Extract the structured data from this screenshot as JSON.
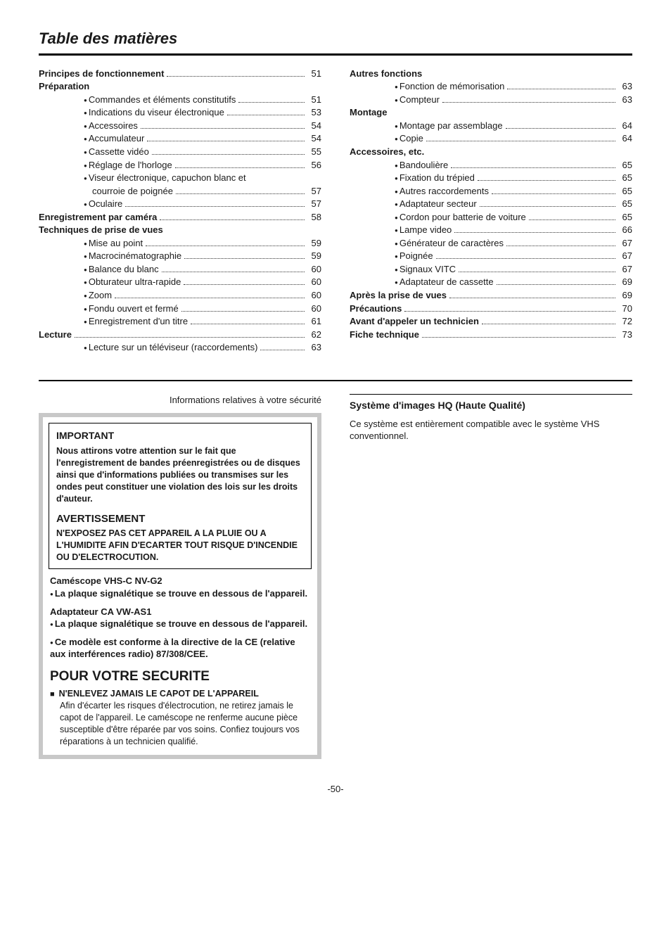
{
  "title": "Table des matières",
  "toc_left": [
    {
      "label": "Principes de fonctionnement",
      "page": "51",
      "bold": true,
      "indent": 0,
      "bullet": false
    },
    {
      "label": "Préparation",
      "page": "",
      "bold": true,
      "indent": 0,
      "bullet": false,
      "nodots": true
    },
    {
      "label": "Commandes et éléments constitutifs",
      "page": "51",
      "bold": false,
      "indent": 1,
      "bullet": true
    },
    {
      "label": "Indications du viseur électronique",
      "page": "53",
      "bold": false,
      "indent": 1,
      "bullet": true
    },
    {
      "label": "Accessoires",
      "page": "54",
      "bold": false,
      "indent": 1,
      "bullet": true
    },
    {
      "label": "Accumulateur",
      "page": "54",
      "bold": false,
      "indent": 1,
      "bullet": true
    },
    {
      "label": "Cassette vidéo",
      "page": "55",
      "bold": false,
      "indent": 1,
      "bullet": true
    },
    {
      "label": "Réglage de l'horloge",
      "page": "56",
      "bold": false,
      "indent": 1,
      "bullet": true
    },
    {
      "label": "Viseur électronique, capuchon blanc et",
      "page": "",
      "bold": false,
      "indent": 1,
      "bullet": true,
      "nodots": true
    },
    {
      "label": "courroie de poignée",
      "page": "57",
      "bold": false,
      "indent": 1,
      "bullet": false,
      "extra_indent": true
    },
    {
      "label": "Oculaire",
      "page": "57",
      "bold": false,
      "indent": 1,
      "bullet": true
    },
    {
      "label": "Enregistrement par caméra",
      "page": "58",
      "bold": true,
      "indent": 0,
      "bullet": false
    },
    {
      "label": "Techniques de prise de vues",
      "page": "",
      "bold": true,
      "indent": 0,
      "bullet": false,
      "nodots": true
    },
    {
      "label": "Mise au point",
      "page": "59",
      "bold": false,
      "indent": 1,
      "bullet": true
    },
    {
      "label": "Macrocinématographie",
      "page": "59",
      "bold": false,
      "indent": 1,
      "bullet": true
    },
    {
      "label": "Balance du blanc",
      "page": "60",
      "bold": false,
      "indent": 1,
      "bullet": true
    },
    {
      "label": "Obturateur ultra-rapide",
      "page": "60",
      "bold": false,
      "indent": 1,
      "bullet": true
    },
    {
      "label": "Zoom",
      "page": "60",
      "bold": false,
      "indent": 1,
      "bullet": true
    },
    {
      "label": "Fondu ouvert et fermé",
      "page": "60",
      "bold": false,
      "indent": 1,
      "bullet": true
    },
    {
      "label": "Enregistrement d'un titre",
      "page": "61",
      "bold": false,
      "indent": 1,
      "bullet": true
    },
    {
      "label": "Lecture",
      "page": "62",
      "bold": true,
      "indent": 0,
      "bullet": false
    },
    {
      "label": "Lecture sur un téléviseur (raccordements)",
      "page": "63",
      "bold": false,
      "indent": 1,
      "bullet": true
    }
  ],
  "toc_right": [
    {
      "label": "Autres fonctions",
      "page": "",
      "bold": true,
      "indent": 0,
      "bullet": false,
      "nodots": true
    },
    {
      "label": "Fonction de mémorisation",
      "page": "63",
      "bold": false,
      "indent": 1,
      "bullet": true
    },
    {
      "label": "Compteur",
      "page": "63",
      "bold": false,
      "indent": 1,
      "bullet": true
    },
    {
      "label": "Montage",
      "page": "",
      "bold": true,
      "indent": 0,
      "bullet": false,
      "nodots": true
    },
    {
      "label": "Montage par assemblage",
      "page": "64",
      "bold": false,
      "indent": 1,
      "bullet": true
    },
    {
      "label": "Copie",
      "page": "64",
      "bold": false,
      "indent": 1,
      "bullet": true
    },
    {
      "label": "Accessoires, etc.",
      "page": "",
      "bold": true,
      "indent": 0,
      "bullet": false,
      "nodots": true
    },
    {
      "label": "Bandoulière",
      "page": "65",
      "bold": false,
      "indent": 1,
      "bullet": true
    },
    {
      "label": "Fixation du trépied",
      "page": "65",
      "bold": false,
      "indent": 1,
      "bullet": true
    },
    {
      "label": "Autres raccordements",
      "page": "65",
      "bold": false,
      "indent": 1,
      "bullet": true
    },
    {
      "label": "Adaptateur secteur",
      "page": "65",
      "bold": false,
      "indent": 1,
      "bullet": true
    },
    {
      "label": "Cordon pour batterie de voiture",
      "page": "65",
      "bold": false,
      "indent": 1,
      "bullet": true
    },
    {
      "label": "Lampe video",
      "page": "66",
      "bold": false,
      "indent": 1,
      "bullet": true
    },
    {
      "label": "Générateur de caractères",
      "page": "67",
      "bold": false,
      "indent": 1,
      "bullet": true
    },
    {
      "label": "Poignée",
      "page": "67",
      "bold": false,
      "indent": 1,
      "bullet": true
    },
    {
      "label": "Signaux VITC",
      "page": "67",
      "bold": false,
      "indent": 1,
      "bullet": true
    },
    {
      "label": "Adaptateur de cassette",
      "page": "69",
      "bold": false,
      "indent": 1,
      "bullet": true
    },
    {
      "label": "Après la prise de vues",
      "page": "69",
      "bold": true,
      "indent": 0,
      "bullet": false
    },
    {
      "label": "Précautions",
      "page": "70",
      "bold": true,
      "indent": 0,
      "bullet": false
    },
    {
      "label": "Avant d'appeler un technicien",
      "page": "72",
      "bold": true,
      "indent": 0,
      "bullet": false
    },
    {
      "label": "Fiche technique",
      "page": "73",
      "bold": true,
      "indent": 0,
      "bullet": false
    }
  ],
  "safety_header": "Informations relatives à votre sécurité",
  "important": {
    "heading": "IMPORTANT",
    "body": "Nous attirons votre attention sur le fait que l'enregistrement de bandes préenregistrées ou de disques ainsi que d'informations publiées ou transmises sur les ondes peut constituer une violation des lois sur les droits d'auteur."
  },
  "warning": {
    "heading": "AVERTISSEMENT",
    "body": "N'EXPOSEZ PAS CET APPAREIL A LA PLUIE OU A L'HUMIDITE AFIN D'ECARTER TOUT RISQUE D'INCENDIE OU D'ELECTROCUTION."
  },
  "camescope": {
    "title": "Caméscope VHS-C NV-G2",
    "line": "La plaque signalétique se trouve en dessous de l'appareil."
  },
  "adapter": {
    "title": "Adaptateur CA VW-AS1",
    "line": "La plaque signalétique se trouve en dessous de l'appareil."
  },
  "ce_line": "Ce modèle est conforme à la directive de la CE (relative aux interférences radio) 87/308/CEE.",
  "security": {
    "heading": "POUR VOTRE SECURITE",
    "sub": "N'ENLEVEZ JAMAIS LE CAPOT DE L'APPAREIL",
    "body": "Afin d'écarter les risques d'électrocution, ne retirez jamais le capot de l'appareil. Le caméscope ne renferme aucune pièce susceptible d'être réparée par vos soins. Confiez toujours vos réparations à un technicien qualifié."
  },
  "hq": {
    "heading": "Système d'images HQ (Haute Qualité)",
    "body": "Ce système est entièrement compatible avec le système VHS conventionnel."
  },
  "page_number": "-50-"
}
